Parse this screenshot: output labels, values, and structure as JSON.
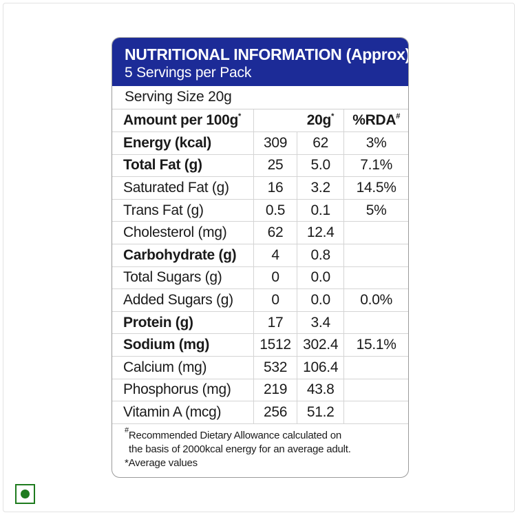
{
  "label": {
    "title": "NUTRITIONAL INFORMATION (Approx)",
    "subtitle": "5 Servings per Pack",
    "serving_size": "Serving Size 20g",
    "header": {
      "amount": "Amount per 100g",
      "amount_mark": "*",
      "serving_col": "20g",
      "serving_mark": "*",
      "rda_col": "%RDA",
      "rda_mark": "#"
    },
    "rows": [
      {
        "name": "Energy (kcal)",
        "per100": "309",
        "per20": "62",
        "rda": "3%"
      },
      {
        "name": "Total Fat (g)",
        "per100": "25",
        "per20": "5.0",
        "rda": "7.1%"
      },
      {
        "name": "Saturated Fat (g)",
        "per100": "16",
        "per20": "3.2",
        "rda": "14.5%"
      },
      {
        "name": "Trans Fat (g)",
        "per100": "0.5",
        "per20": "0.1",
        "rda": "5%"
      },
      {
        "name": "Cholesterol (mg)",
        "per100": "62",
        "per20": "12.4",
        "rda": ""
      },
      {
        "name": "Carbohydrate (g)",
        "per100": "4",
        "per20": "0.8",
        "rda": ""
      },
      {
        "name": "Total Sugars (g)",
        "per100": "0",
        "per20": "0.0",
        "rda": ""
      },
      {
        "name": "Added Sugars (g)",
        "per100": "0",
        "per20": "0.0",
        "rda": "0.0%"
      },
      {
        "name": "Protein (g)",
        "per100": "17",
        "per20": "3.4",
        "rda": ""
      },
      {
        "name": "Sodium (mg)",
        "per100": "1512",
        "per20": "302.4",
        "rda": "15.1%"
      },
      {
        "name": "Calcium (mg)",
        "per100": "532",
        "per20": "106.4",
        "rda": ""
      },
      {
        "name": "Phosphorus (mg)",
        "per100": "219",
        "per20": "43.8",
        "rda": ""
      },
      {
        "name": "Vitamin A (mcg)",
        "per100": "256",
        "per20": "51.2",
        "rda": ""
      }
    ],
    "footnote": {
      "rda_mark": "#",
      "line1": "Recommended Dietary Allowance calculated on",
      "line2": "the basis of 2000kcal energy for an average adult.",
      "avg_mark": "*",
      "line3": "Average values"
    }
  },
  "colors": {
    "header_bg": "#1c2b97",
    "veg_mark": "#1e7b1e"
  },
  "icons": {
    "veg": "veg-symbol-icon"
  }
}
